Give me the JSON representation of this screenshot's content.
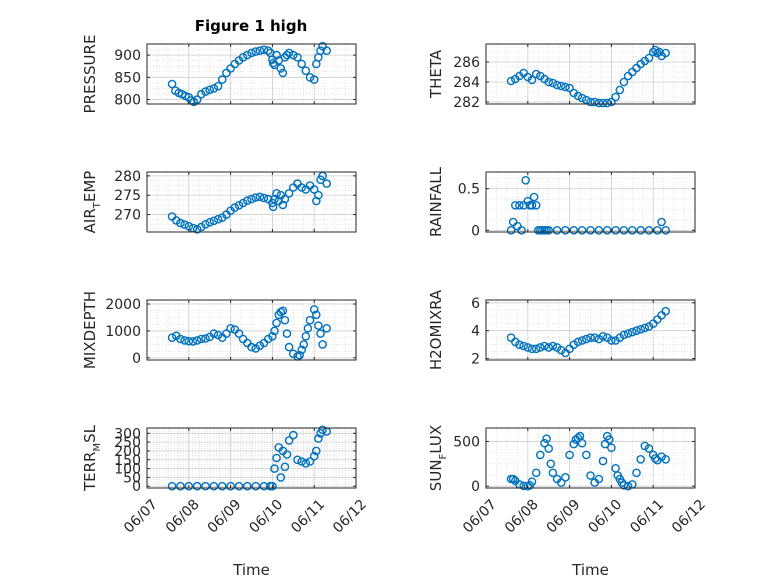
{
  "figure": {
    "title": "Figure 1 high"
  },
  "colors": {
    "marker": "#0072BD",
    "axis": "#262626",
    "grid": "#d0d0d0"
  },
  "chart_data": [
    {
      "type": "scatter",
      "name": "pressure",
      "title": "Figure 1 high",
      "ylabel": {
        "main": "PRESSURE",
        "sub": ""
      },
      "ylim": [
        790,
        925
      ],
      "yticks": [
        800,
        850,
        900
      ],
      "ytick_labels": [
        "800",
        "850",
        "900"
      ],
      "xlim": [
        "06/07",
        "06/12"
      ],
      "grid": true,
      "xlabel": "",
      "xtick_labels": [],
      "x": [
        0.6,
        0.68,
        0.76,
        0.84,
        0.92,
        1.0,
        1.06,
        1.12,
        1.2,
        1.3,
        1.4,
        1.5,
        1.6,
        1.7,
        1.8,
        1.9,
        2.0,
        2.1,
        2.2,
        2.3,
        2.4,
        2.5,
        2.6,
        2.7,
        2.8,
        2.9,
        2.95,
        3.0,
        3.02,
        3.05,
        3.1,
        3.15,
        3.2,
        3.25,
        3.3,
        3.35,
        3.4,
        3.5,
        3.6,
        3.7,
        3.8,
        3.9,
        4.0,
        4.05,
        4.1,
        4.15,
        4.2,
        4.3
      ],
      "y": [
        835,
        820,
        815,
        812,
        808,
        805,
        798,
        795,
        800,
        812,
        818,
        822,
        825,
        830,
        845,
        860,
        870,
        880,
        888,
        895,
        900,
        905,
        908,
        910,
        912,
        910,
        905,
        890,
        882,
        878,
        900,
        888,
        870,
        860,
        895,
        900,
        905,
        900,
        895,
        880,
        865,
        850,
        845,
        880,
        895,
        910,
        920,
        910
      ]
    },
    {
      "type": "scatter",
      "name": "theta",
      "title": "",
      "ylabel": {
        "main": "THETA",
        "sub": ""
      },
      "ylim": [
        281.8,
        287.8
      ],
      "yticks": [
        282,
        284,
        286
      ],
      "ytick_labels": [
        "282",
        "284",
        "286"
      ],
      "xlim": [
        "06/07",
        "06/12"
      ],
      "grid": true,
      "xlabel": "",
      "xtick_labels": [],
      "x": [
        0.6,
        0.7,
        0.8,
        0.9,
        1.0,
        1.1,
        1.2,
        1.3,
        1.4,
        1.5,
        1.6,
        1.7,
        1.8,
        1.9,
        2.0,
        2.1,
        2.2,
        2.3,
        2.4,
        2.5,
        2.6,
        2.7,
        2.8,
        2.9,
        3.0,
        3.1,
        3.2,
        3.3,
        3.4,
        3.5,
        3.6,
        3.7,
        3.8,
        3.9,
        4.0,
        4.05,
        4.1,
        4.15,
        4.2,
        4.3
      ],
      "y": [
        284.1,
        284.3,
        284.6,
        284.9,
        284.5,
        284.2,
        284.8,
        284.6,
        284.3,
        284.0,
        283.9,
        283.7,
        283.6,
        283.5,
        283.4,
        282.9,
        282.6,
        282.4,
        282.2,
        282.0,
        282.0,
        281.9,
        281.9,
        281.9,
        282.0,
        282.5,
        283.2,
        284.0,
        284.6,
        285.0,
        285.4,
        285.8,
        286.1,
        286.4,
        287.0,
        287.2,
        286.9,
        287.0,
        286.6,
        286.9
      ]
    },
    {
      "type": "scatter",
      "name": "air-temp",
      "title": "",
      "ylabel": {
        "main": "AIR",
        "sub": "T",
        "tail": "EMP"
      },
      "ylim": [
        265.5,
        281
      ],
      "yticks": [
        270,
        275,
        280
      ],
      "ytick_labels": [
        "270",
        "275",
        "280"
      ],
      "xlim": [
        "06/07",
        "06/12"
      ],
      "grid": true,
      "xlabel": "",
      "xtick_labels": [],
      "x": [
        0.6,
        0.7,
        0.8,
        0.9,
        1.0,
        1.1,
        1.2,
        1.3,
        1.4,
        1.5,
        1.6,
        1.7,
        1.8,
        1.9,
        2.0,
        2.1,
        2.2,
        2.3,
        2.4,
        2.5,
        2.6,
        2.7,
        2.8,
        2.9,
        3.0,
        3.02,
        3.05,
        3.1,
        3.15,
        3.2,
        3.25,
        3.3,
        3.4,
        3.5,
        3.6,
        3.7,
        3.8,
        3.9,
        4.0,
        4.05,
        4.1,
        4.15,
        4.2,
        4.3
      ],
      "y": [
        269.5,
        268.5,
        267.8,
        267.4,
        267.0,
        266.5,
        266.2,
        266.8,
        267.5,
        268.0,
        268.4,
        268.8,
        269.2,
        270.0,
        271.0,
        271.8,
        272.4,
        273.0,
        273.6,
        274.0,
        274.4,
        274.6,
        274.3,
        274.0,
        273.0,
        272.0,
        274.0,
        275.5,
        273.5,
        275.0,
        272.5,
        274.0,
        275.5,
        277.0,
        278.0,
        277.0,
        276.5,
        277.5,
        276.5,
        273.5,
        275.0,
        279.0,
        280.0,
        278.0
      ]
    },
    {
      "type": "scatter",
      "name": "rainfall",
      "title": "",
      "ylabel": {
        "main": "RAINFALL",
        "sub": ""
      },
      "ylim": [
        -0.02,
        0.7
      ],
      "yticks": [
        0,
        0.5
      ],
      "ytick_labels": [
        "0",
        "0.5"
      ],
      "xlim": [
        "06/07",
        "06/12"
      ],
      "grid": true,
      "xlabel": "",
      "xtick_labels": [],
      "x": [
        0.6,
        0.65,
        0.7,
        0.75,
        0.8,
        0.85,
        0.9,
        0.95,
        1.0,
        1.05,
        1.1,
        1.15,
        1.2,
        1.25,
        1.3,
        1.35,
        1.4,
        1.45,
        1.5,
        1.7,
        1.9,
        2.1,
        2.3,
        2.5,
        2.7,
        2.9,
        3.1,
        3.3,
        3.5,
        3.7,
        3.9,
        4.1,
        4.2,
        4.3
      ],
      "y": [
        0,
        0.1,
        0.3,
        0.05,
        0.3,
        0.0,
        0.3,
        0.6,
        0.35,
        0.3,
        0.3,
        0.4,
        0.3,
        0.0,
        0,
        0,
        0,
        0,
        0,
        0,
        0,
        0,
        0,
        0,
        0,
        0,
        0,
        0,
        0,
        0,
        0,
        0,
        0.1,
        0
      ]
    },
    {
      "type": "scatter",
      "name": "mixdepth",
      "title": "",
      "ylabel": {
        "main": "MIXDEPTH",
        "sub": ""
      },
      "ylim": [
        -80,
        2150
      ],
      "yticks": [
        0,
        1000,
        2000
      ],
      "ytick_labels": [
        "0",
        "1000",
        "2000"
      ],
      "xlim": [
        "06/07",
        "06/12"
      ],
      "grid": true,
      "xlabel": "",
      "xtick_labels": [],
      "x": [
        0.6,
        0.7,
        0.8,
        0.9,
        1.0,
        1.1,
        1.2,
        1.3,
        1.4,
        1.5,
        1.6,
        1.7,
        1.8,
        1.9,
        2.0,
        2.1,
        2.2,
        2.3,
        2.4,
        2.5,
        2.6,
        2.7,
        2.8,
        2.9,
        3.0,
        3.05,
        3.1,
        3.15,
        3.2,
        3.25,
        3.3,
        3.35,
        3.4,
        3.5,
        3.6,
        3.65,
        3.7,
        3.75,
        3.8,
        3.85,
        3.9,
        4.0,
        4.05,
        4.1,
        4.15,
        4.2,
        4.3
      ],
      "y": [
        750,
        820,
        700,
        650,
        620,
        610,
        650,
        700,
        720,
        780,
        900,
        850,
        750,
        900,
        1100,
        1050,
        900,
        700,
        550,
        400,
        350,
        450,
        550,
        700,
        800,
        1000,
        1300,
        1600,
        1700,
        1750,
        1400,
        900,
        400,
        150,
        50,
        100,
        300,
        500,
        800,
        1100,
        1400,
        1800,
        1600,
        1200,
        900,
        500,
        1100
      ]
    },
    {
      "type": "scatter",
      "name": "h2omixra",
      "title": "",
      "ylabel": {
        "main": "H2OMIXRA",
        "sub": ""
      },
      "ylim": [
        1.9,
        6.2
      ],
      "yticks": [
        2,
        4,
        6
      ],
      "ytick_labels": [
        "2",
        "4",
        "6"
      ],
      "xlim": [
        "06/07",
        "06/12"
      ],
      "grid": true,
      "xlabel": "",
      "xtick_labels": [],
      "x": [
        0.6,
        0.7,
        0.8,
        0.9,
        1.0,
        1.1,
        1.2,
        1.3,
        1.4,
        1.5,
        1.6,
        1.7,
        1.8,
        1.9,
        2.0,
        2.1,
        2.2,
        2.3,
        2.4,
        2.5,
        2.6,
        2.7,
        2.8,
        2.9,
        3.0,
        3.1,
        3.2,
        3.3,
        3.4,
        3.5,
        3.6,
        3.7,
        3.8,
        3.9,
        4.0,
        4.1,
        4.2,
        4.3
      ],
      "y": [
        3.5,
        3.2,
        3.0,
        2.9,
        2.8,
        2.7,
        2.7,
        2.8,
        2.9,
        2.8,
        2.9,
        2.8,
        2.6,
        2.4,
        2.7,
        3.0,
        3.2,
        3.3,
        3.4,
        3.5,
        3.5,
        3.4,
        3.6,
        3.5,
        3.3,
        3.3,
        3.5,
        3.7,
        3.8,
        3.9,
        4.0,
        4.1,
        4.2,
        4.3,
        4.5,
        4.8,
        5.1,
        5.4
      ]
    },
    {
      "type": "scatter",
      "name": "terr-msl",
      "title": "",
      "ylabel": {
        "main": "TERR",
        "sub": "M",
        "tail": "SL"
      },
      "ylim": [
        -10,
        330
      ],
      "yticks": [
        0,
        50,
        100,
        150,
        200,
        250,
        300
      ],
      "ytick_labels": [
        "0",
        "50",
        "100",
        "150",
        "200",
        "250",
        "300"
      ],
      "xlim": [
        "06/07",
        "06/12"
      ],
      "grid": true,
      "xlabel": "Time",
      "xtick_labels": [
        "06/07",
        "06/08",
        "06/09",
        "06/10",
        "06/11",
        "06/12"
      ],
      "x": [
        0.6,
        0.8,
        1.0,
        1.2,
        1.4,
        1.6,
        1.8,
        2.0,
        2.2,
        2.4,
        2.6,
        2.8,
        2.95,
        3.0,
        3.05,
        3.1,
        3.15,
        3.2,
        3.25,
        3.3,
        3.35,
        3.4,
        3.5,
        3.6,
        3.7,
        3.8,
        3.9,
        4.0,
        4.05,
        4.1,
        4.15,
        4.2,
        4.3
      ],
      "y": [
        0,
        0,
        0,
        0,
        0,
        0,
        0,
        0,
        0,
        0,
        0,
        0,
        0,
        0,
        100,
        160,
        220,
        50,
        200,
        110,
        180,
        260,
        290,
        150,
        140,
        130,
        140,
        170,
        200,
        270,
        300,
        320,
        310
      ]
    },
    {
      "type": "scatter",
      "name": "sun-flux",
      "title": "",
      "ylabel": {
        "main": "SUN",
        "sub": "F",
        "tail": "LUX"
      },
      "ylim": [
        -20,
        650
      ],
      "yticks": [
        0,
        500
      ],
      "ytick_labels": [
        "0",
        "500"
      ],
      "xlim": [
        "06/07",
        "06/12"
      ],
      "grid": true,
      "xlabel": "Time",
      "xtick_labels": [
        "06/07",
        "06/08",
        "06/09",
        "06/10",
        "06/11",
        "06/12"
      ],
      "x": [
        0.6,
        0.65,
        0.7,
        0.8,
        0.9,
        1.0,
        1.05,
        1.1,
        1.2,
        1.3,
        1.4,
        1.45,
        1.5,
        1.55,
        1.6,
        1.7,
        1.8,
        1.9,
        2.0,
        2.1,
        2.15,
        2.2,
        2.25,
        2.3,
        2.4,
        2.5,
        2.6,
        2.7,
        2.8,
        2.85,
        2.9,
        2.95,
        3.0,
        3.1,
        3.15,
        3.2,
        3.25,
        3.3,
        3.4,
        3.5,
        3.6,
        3.7,
        3.8,
        3.9,
        4.0,
        4.05,
        4.1,
        4.2,
        4.3
      ],
      "y": [
        80,
        80,
        60,
        20,
        5,
        0,
        10,
        50,
        150,
        350,
        480,
        530,
        420,
        250,
        150,
        80,
        40,
        100,
        350,
        470,
        520,
        540,
        560,
        480,
        350,
        120,
        40,
        80,
        280,
        470,
        560,
        520,
        430,
        200,
        120,
        80,
        40,
        10,
        0,
        20,
        150,
        300,
        450,
        420,
        350,
        310,
        290,
        330,
        300
      ]
    }
  ]
}
